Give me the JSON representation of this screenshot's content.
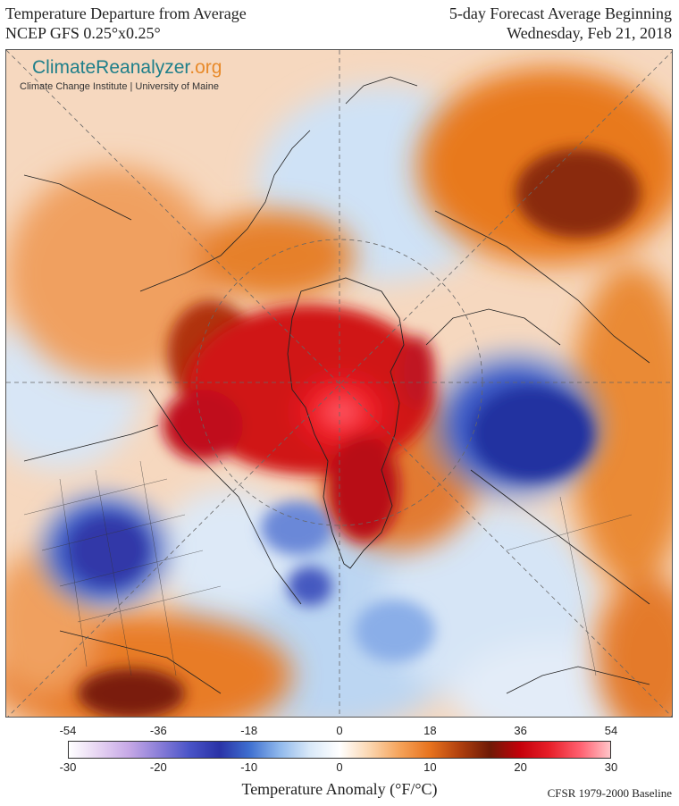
{
  "header": {
    "title_line1": "Temperature Departure from Average",
    "title_line2": "NCEP GFS 0.25°x0.25°",
    "forecast_line1": "5-day Forecast Average Beginning",
    "forecast_line2": "Wednesday, Feb 21, 2018"
  },
  "logo": {
    "name_main": "ClimateReanalyzer",
    "name_suffix": ".org",
    "subtitle": "Climate Change Institute | University of Maine"
  },
  "colorbar": {
    "title": "Temperature Anomaly (°F/°C)",
    "fahrenheit_ticks": [
      "-54",
      "-36",
      "-18",
      "0",
      "18",
      "36",
      "54"
    ],
    "celsius_ticks": [
      "-30",
      "-20",
      "-10",
      "0",
      "10",
      "20",
      "30"
    ],
    "range_celsius": [
      -30,
      30
    ],
    "range_fahrenheit": [
      -54,
      54
    ],
    "stops": [
      "#ffffff",
      "#e6d3f2",
      "#c6a8e6",
      "#8a7ed8",
      "#4a54c8",
      "#2a32a6",
      "#3e6fd0",
      "#8fb8ec",
      "#d8e8f8",
      "#ffffff",
      "#fbd6b0",
      "#f5a35a",
      "#e8731e",
      "#b0400e",
      "#6e1a06",
      "#c4000a",
      "#e8202a",
      "#ff6070",
      "#ffc4c8"
    ]
  },
  "baseline_note": "CFSR 1979-2000 Baseline"
}
